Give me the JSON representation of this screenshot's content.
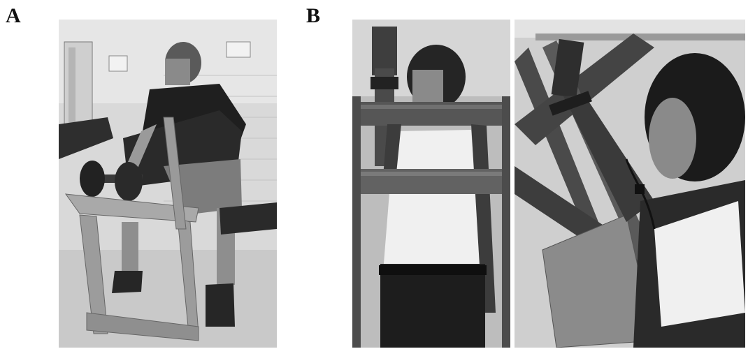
{
  "figure": {
    "panels": [
      {
        "label": "A",
        "photo_name": "photo-a-preacher-curl-bench"
      },
      {
        "label": "B",
        "photo_name": "photo-b-forearm-restraint-rig"
      }
    ],
    "style": {
      "background": "#ffffff",
      "photo_tone": "grayscale"
    }
  }
}
